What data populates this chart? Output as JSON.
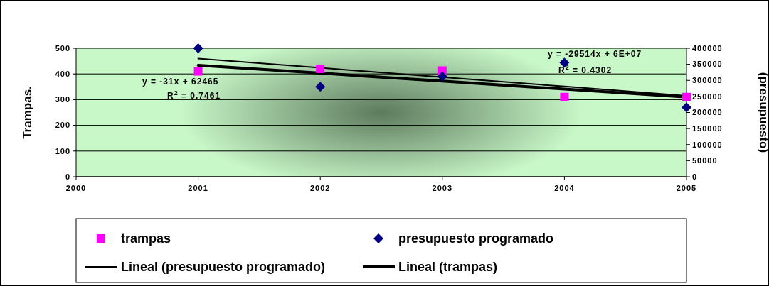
{
  "chart_data": {
    "type": "scatter",
    "ylabel": "Trampas.",
    "y2label": "(presupuesto)",
    "x": [
      2001,
      2002,
      2003,
      2004,
      2005
    ],
    "xlim": [
      2000,
      2005
    ],
    "xticks": [
      2000,
      2001,
      2002,
      2003,
      2004,
      2005
    ],
    "ylim": [
      0,
      500
    ],
    "yticks": [
      0,
      100,
      200,
      300,
      400,
      500
    ],
    "y2lim": [
      0,
      400000
    ],
    "y2ticks": [
      0,
      50000,
      100000,
      150000,
      200000,
      250000,
      300000,
      350000,
      400000
    ],
    "grid": "y",
    "legend": "bottom",
    "series": [
      {
        "name": "trampas",
        "type": "scatter",
        "marker": "square",
        "color": "#ff00ff",
        "values": [
          410,
          420,
          413,
          310,
          310
        ]
      },
      {
        "name": "presupuesto programado",
        "type": "scatter",
        "marker": "diamond",
        "axis": "y2",
        "color": "#000080",
        "values": [
          400000,
          280000,
          312000,
          355000,
          216000
        ]
      },
      {
        "name": "Lineal (presupuesto programado)",
        "type": "line",
        "marker": "none",
        "line_style": "solid",
        "axis": "y2",
        "color": "#000000",
        "values": [
          368000,
          339000,
          310000,
          281000,
          252000
        ]
      },
      {
        "name": "Lineal (trampas)",
        "type": "line",
        "marker": "none",
        "line_style": "solid",
        "color": "#000000",
        "values": [
          434,
          403,
          372,
          341,
          310
        ]
      }
    ],
    "annotations": [
      "y = -31x + 62465",
      "R$^{2}$ = 0.7461",
      "y = -29514x + 6E+07",
      "R$^{2}$ = 0.4302"
    ]
  }
}
